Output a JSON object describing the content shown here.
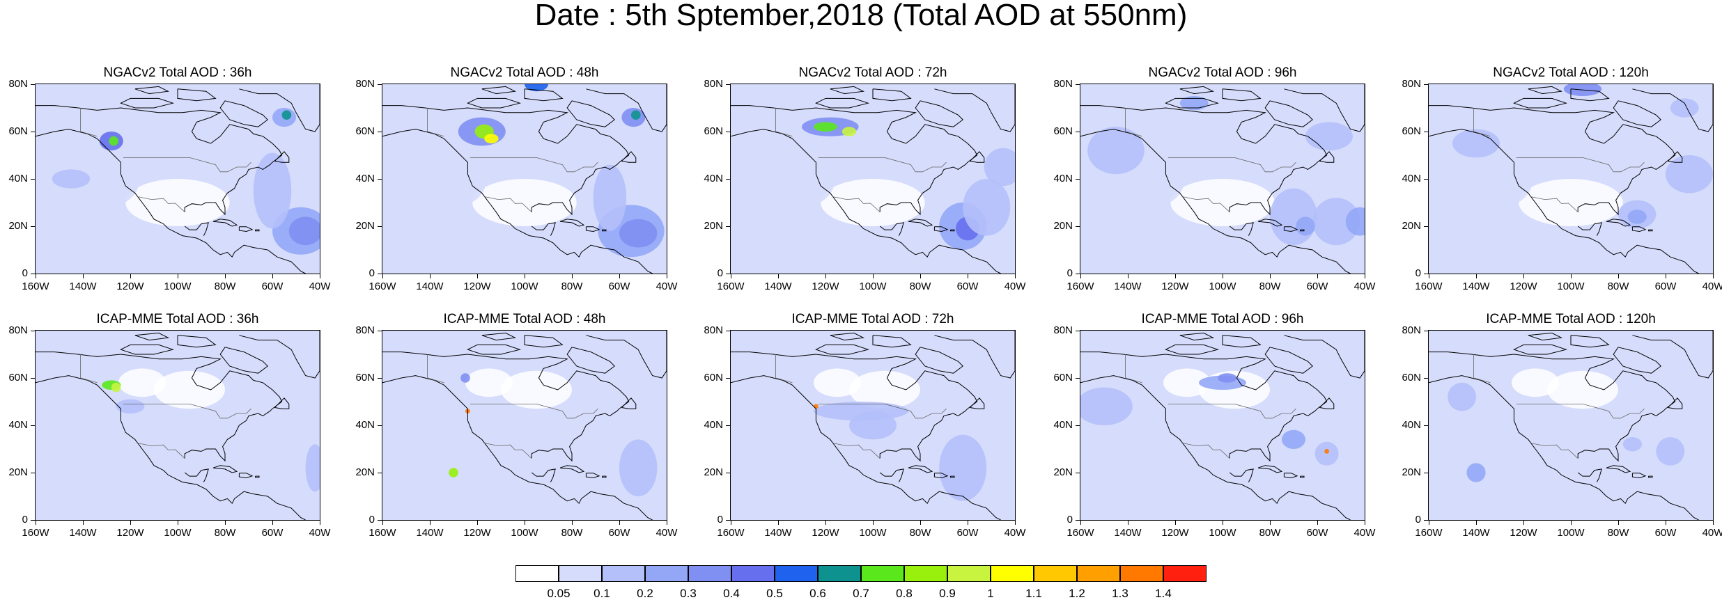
{
  "title": "Date : 5th Sptember,2018 (Total AOD at 550nm)",
  "panels": [
    {
      "title": "NGACv2 Total AOD : 36h"
    },
    {
      "title": "NGACv2 Total AOD : 48h"
    },
    {
      "title": "NGACv2 Total AOD : 72h"
    },
    {
      "title": "NGACv2 Total AOD : 96h"
    },
    {
      "title": "NGACv2 Total AOD : 120h"
    },
    {
      "title": "ICAP-MME Total AOD : 36h"
    },
    {
      "title": "ICAP-MME Total AOD : 48h"
    },
    {
      "title": "ICAP-MME Total AOD : 72h"
    },
    {
      "title": "ICAP-MME Total AOD : 96h"
    },
    {
      "title": "ICAP-MME Total AOD : 120h"
    }
  ],
  "lat_labels": [
    "80N",
    "60N",
    "40N",
    "20N",
    "0"
  ],
  "lon_labels": [
    "160W",
    "140W",
    "120W",
    "100W",
    "80W",
    "60W",
    "40W"
  ],
  "colorbar": {
    "labels": [
      "0.05",
      "0.1",
      "0.2",
      "0.3",
      "0.4",
      "0.5",
      "0.6",
      "0.7",
      "0.8",
      "0.9",
      "1",
      "1.1",
      "1.2",
      "1.3",
      "1.4"
    ],
    "colors": [
      "#ffffff",
      "#d6dcfb",
      "#b4c0fa",
      "#94a7f7",
      "#7f8ff2",
      "#6670ee",
      "#1e62ee",
      "#0e928f",
      "#5ae81c",
      "#98f00c",
      "#c8f440",
      "#ffff00",
      "#ffc800",
      "#ffa000",
      "#ff7800",
      "#ff2010"
    ]
  },
  "map_features": {
    "land_border_color": "#000000",
    "us_canada_border_color": "#666666"
  }
}
